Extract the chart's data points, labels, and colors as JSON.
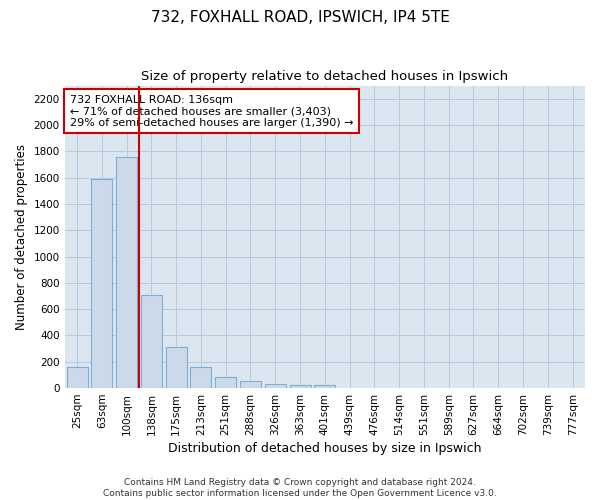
{
  "title1": "732, FOXHALL ROAD, IPSWICH, IP4 5TE",
  "title2": "Size of property relative to detached houses in Ipswich",
  "xlabel": "Distribution of detached houses by size in Ipswich",
  "ylabel": "Number of detached properties",
  "categories": [
    "25sqm",
    "63sqm",
    "100sqm",
    "138sqm",
    "175sqm",
    "213sqm",
    "251sqm",
    "288sqm",
    "326sqm",
    "363sqm",
    "401sqm",
    "439sqm",
    "476sqm",
    "514sqm",
    "551sqm",
    "589sqm",
    "627sqm",
    "664sqm",
    "702sqm",
    "739sqm",
    "777sqm"
  ],
  "values": [
    160,
    1590,
    1760,
    710,
    315,
    160,
    85,
    55,
    30,
    20,
    20,
    0,
    0,
    0,
    0,
    0,
    0,
    0,
    0,
    0,
    0
  ],
  "bar_color": "#ccd9ea",
  "bar_edge_color": "#7bafd4",
  "vline_color": "#cc0000",
  "annotation_text": "732 FOXHALL ROAD: 136sqm\n← 71% of detached houses are smaller (3,403)\n29% of semi-detached houses are larger (1,390) →",
  "annotation_box_color": "#ffffff",
  "annotation_box_edge_color": "#cc0000",
  "ylim": [
    0,
    2300
  ],
  "yticks": [
    0,
    200,
    400,
    600,
    800,
    1000,
    1200,
    1400,
    1600,
    1800,
    2000,
    2200
  ],
  "grid_color": "#b8c8dc",
  "bg_color": "#dce6f0",
  "footnote": "Contains HM Land Registry data © Crown copyright and database right 2024.\nContains public sector information licensed under the Open Government Licence v3.0.",
  "title1_fontsize": 11,
  "title2_fontsize": 9.5,
  "xlabel_fontsize": 9,
  "ylabel_fontsize": 8.5,
  "tick_fontsize": 7.5,
  "annot_fontsize": 8,
  "footnote_fontsize": 6.5
}
